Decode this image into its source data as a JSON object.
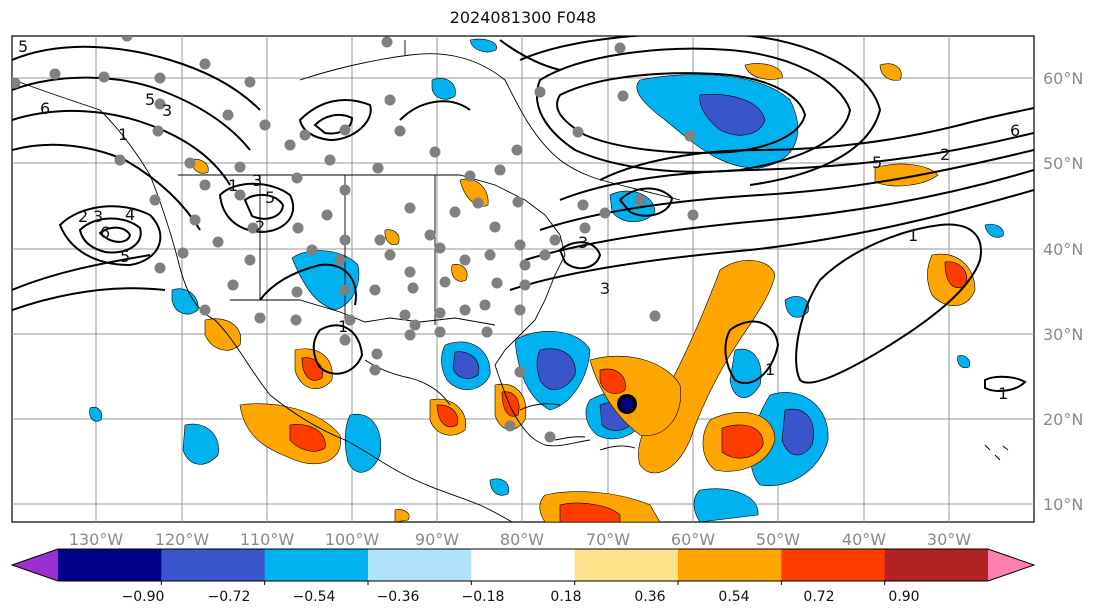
{
  "title": "2024081300 F048",
  "map": {
    "lon_labels": [
      "130°W",
      "120°W",
      "110°W",
      "100°W",
      "90°W",
      "80°W",
      "70°W",
      "60°W",
      "50°W",
      "40°W",
      "30°W"
    ],
    "lat_labels": [
      "60°N",
      "50°N",
      "40°N",
      "30°N",
      "20°N",
      "10°N"
    ],
    "contour_labels": [
      "5",
      "6",
      "5",
      "3",
      "1",
      "2",
      "3",
      "4",
      "6",
      "5",
      "3",
      "5",
      "2",
      "1",
      "1",
      "3",
      "3",
      "6",
      "5",
      "2",
      "1",
      "1",
      "1"
    ]
  },
  "colorbar": {
    "ticks": [
      "−0.90",
      "−0.72",
      "−0.54",
      "−0.36",
      "−0.18",
      "0.18",
      "0.36",
      "0.54",
      "0.72",
      "0.90"
    ],
    "colors": [
      "#9b2fd0",
      "#00008b",
      "#3a55cc",
      "#00b3f0",
      "#b0e2fb",
      "#ffffff",
      "#fde48a",
      "#ffa500",
      "#ff3c00",
      "#b22222",
      "#ff7fb0"
    ]
  },
  "colors": {
    "neg_strong": "#3a55cc",
    "neg_mid": "#00b3f0",
    "pos_mid": "#ffa500",
    "pos_strong": "#ff3c00",
    "dots": "#808080",
    "contours": "#000000"
  }
}
